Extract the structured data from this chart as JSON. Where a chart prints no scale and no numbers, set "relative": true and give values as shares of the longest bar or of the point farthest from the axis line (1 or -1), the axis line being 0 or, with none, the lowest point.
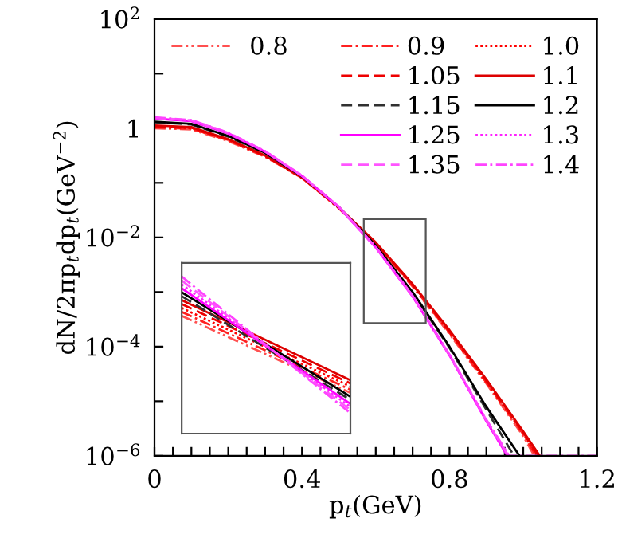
{
  "chart_data": [
    {
      "type": "line",
      "xlabel": "p$_{t}$(GeV)",
      "ylabel": "dN/2πp$_{t}$dp$_{t}$(GeV$^{−2}$)",
      "log": "y",
      "grid": false,
      "legend": "top right",
      "marker": "none",
      "xlim": [
        0,
        1.2
      ],
      "ylim": [
        1e-06,
        100
      ],
      "xticks": [
        0,
        {
          "value": 0.05,
          "label": null
        },
        {
          "value": 0.1,
          "label": null
        },
        {
          "value": 0.15,
          "label": null
        },
        {
          "value": 0.2,
          "label": null
        },
        {
          "value": 0.25,
          "label": null
        },
        {
          "value": 0.3,
          "label": null
        },
        {
          "value": 0.35,
          "label": null
        },
        0.4,
        {
          "value": 0.45,
          "label": null
        },
        {
          "value": 0.5,
          "label": null
        },
        {
          "value": 0.55,
          "label": null
        },
        {
          "value": 0.6,
          "label": null
        },
        {
          "value": 0.65,
          "label": null
        },
        {
          "value": 0.7,
          "label": null
        },
        {
          "value": 0.75,
          "label": null
        },
        0.8,
        {
          "value": 0.85,
          "label": null
        },
        {
          "value": 0.9,
          "label": null
        },
        {
          "value": 0.95,
          "label": null
        },
        {
          "value": 1.0,
          "label": null
        },
        {
          "value": 1.05,
          "label": null
        },
        {
          "value": 1.1,
          "label": null
        },
        {
          "value": 1.15,
          "label": null
        },
        1.2
      ],
      "yticks": [
        {
          "value": 1e-06,
          "label": "10$^{−6}$"
        },
        {
          "value": 1e-05,
          "label": null
        },
        {
          "value": 0.0001,
          "label": "10$^{−4}$"
        },
        {
          "value": 0.001,
          "label": null
        },
        {
          "value": 0.01,
          "label": "10$^{−2}$"
        },
        {
          "value": 0.1,
          "label": null
        },
        1,
        {
          "value": 10,
          "label": null
        },
        {
          "value": 100,
          "label": "10$^{2}$"
        }
      ],
      "series": [
        {
          "name": "0.8",
          "color": "#ff5050",
          "line_style": "dashdotdot",
          "x": [
            0,
            0.1,
            0.2,
            0.3,
            0.4,
            0.5,
            0.6,
            0.7,
            0.8,
            0.9,
            1.0,
            1.03
          ],
          "values": [
            1.0,
            0.95,
            0.58,
            0.3,
            0.122,
            0.034,
            0.0075,
            0.00125,
            0.00017,
            2.1e-05,
            2.3e-06,
            1e-06
          ]
        },
        {
          "name": "0.9",
          "color": "#ff2020",
          "line_style": "dashdot",
          "x": [
            0,
            0.1,
            0.2,
            0.3,
            0.4,
            0.5,
            0.6,
            0.7,
            0.8,
            0.9,
            1.0,
            1.035
          ],
          "values": [
            1.03,
            0.98,
            0.6,
            0.305,
            0.123,
            0.0345,
            0.0077,
            0.0013,
            0.00018,
            2.2e-05,
            2.5e-06,
            1e-06
          ]
        },
        {
          "name": "1.0",
          "color": "#ff0000",
          "line_style": "dotted",
          "x": [
            0,
            0.1,
            0.2,
            0.3,
            0.4,
            0.5,
            0.6,
            0.7,
            0.8,
            0.9,
            1.0,
            1.037
          ],
          "values": [
            1.06,
            1.0,
            0.61,
            0.31,
            0.124,
            0.035,
            0.0078,
            0.00133,
            0.000185,
            2.3e-05,
            2.6e-06,
            1e-06
          ]
        },
        {
          "name": "1.05",
          "color": "#ee0000",
          "line_style": "dashed",
          "x": [
            0,
            0.1,
            0.2,
            0.3,
            0.4,
            0.5,
            0.6,
            0.7,
            0.8,
            0.9,
            1.0,
            1.04
          ],
          "values": [
            1.09,
            1.02,
            0.62,
            0.313,
            0.125,
            0.0352,
            0.0079,
            0.00137,
            0.00019,
            2.4e-05,
            2.7e-06,
            1e-06
          ]
        },
        {
          "name": "1.1",
          "color": "#dd0000",
          "line_style": "solid",
          "x": [
            0,
            0.1,
            0.2,
            0.3,
            0.4,
            0.5,
            0.6,
            0.7,
            0.8,
            0.9,
            1.0,
            1.045
          ],
          "values": [
            1.12,
            1.05,
            0.63,
            0.316,
            0.126,
            0.0355,
            0.0081,
            0.0014,
            0.0002,
            2.5e-05,
            2.8e-06,
            1e-06
          ]
        },
        {
          "name": "1.15",
          "color": "#303030",
          "line_style": "dashed",
          "x": [
            0,
            0.1,
            0.2,
            0.3,
            0.4,
            0.5,
            0.6,
            0.7,
            0.8,
            0.9,
            0.975
          ],
          "values": [
            1.28,
            1.17,
            0.7,
            0.35,
            0.13,
            0.0355,
            0.007,
            0.00096,
            9.5e-05,
            7e-06,
            1e-06
          ]
        },
        {
          "name": "1.2",
          "color": "#000000",
          "line_style": "solid",
          "x": [
            0,
            0.1,
            0.2,
            0.3,
            0.4,
            0.5,
            0.6,
            0.7,
            0.8,
            0.9,
            0.99
          ],
          "values": [
            1.32,
            1.2,
            0.72,
            0.355,
            0.132,
            0.036,
            0.0071,
            0.001,
            0.0001,
            7.9e-06,
            1e-06
          ]
        },
        {
          "name": "1.25",
          "color": "#ff00ff",
          "line_style": "solid",
          "x": [
            0,
            0.1,
            0.2,
            0.3,
            0.4,
            0.5,
            0.6,
            0.7,
            0.8,
            0.9,
            0.957
          ],
          "values": [
            1.5,
            1.35,
            0.8,
            0.37,
            0.133,
            0.0357,
            0.0065,
            0.00083,
            6.9e-05,
            4.3e-06,
            1e-06
          ]
        },
        {
          "name": "1.3",
          "color": "#ff20ff",
          "line_style": "dotted",
          "x": [
            0,
            0.1,
            0.2,
            0.3,
            0.4,
            0.5,
            0.6,
            0.7,
            0.8,
            0.9,
            0.958
          ],
          "values": [
            1.53,
            1.37,
            0.81,
            0.375,
            0.134,
            0.036,
            0.0066,
            0.00084,
            7e-05,
            4.4e-06,
            1e-06
          ]
        },
        {
          "name": "1.35",
          "color": "#ff55ff",
          "line_style": "dashed",
          "x": [
            0,
            0.1,
            0.2,
            0.3,
            0.4,
            0.5,
            0.6,
            0.7,
            0.8,
            0.9,
            0.96
          ],
          "values": [
            1.55,
            1.39,
            0.82,
            0.378,
            0.135,
            0.0362,
            0.0066,
            0.00085,
            7.1e-05,
            4.5e-06,
            1e-06
          ]
        },
        {
          "name": "1.4",
          "color": "#ff44ff",
          "line_style": "dashdot",
          "x": [
            0,
            0.1,
            0.2,
            0.3,
            0.4,
            0.5,
            0.6,
            0.7,
            0.8,
            0.9,
            0.962,
            1.0,
            1.1,
            1.2
          ],
          "values": [
            1.58,
            1.41,
            0.83,
            0.38,
            0.136,
            0.0365,
            0.0067,
            0.00086,
            7.2e-05,
            4.6e-06,
            1e-06,
            1e-06,
            1e-06,
            1e-06
          ]
        }
      ]
    },
    {
      "type": "line",
      "relative": true,
      "marker": "none",
      "categories": [
        null,
        null
      ],
      "series": [
        {
          "color": "#ff5050",
          "line_style": "dashdotdot",
          "values": [
            0.75,
            0.26
          ]
        },
        {
          "color": "#ff2020",
          "line_style": "dashdot",
          "values": [
            0.775,
            0.28
          ]
        },
        {
          "color": "#ff0000",
          "line_style": "dotted",
          "values": [
            0.8,
            0.3
          ]
        },
        {
          "color": "#ee0000",
          "line_style": "dashed",
          "values": [
            0.825,
            0.32
          ]
        },
        {
          "color": "#dd0000",
          "line_style": "solid",
          "values": [
            0.85,
            0.34
          ]
        },
        {
          "color": "#303030",
          "line_style": "dashed",
          "values": [
            0.875,
            0.215
          ]
        },
        {
          "color": "#000000",
          "line_style": "solid",
          "values": [
            0.9,
            0.235
          ]
        },
        {
          "color": "#ff00ff",
          "line_style": "solid",
          "values": [
            0.925,
            0.19
          ]
        },
        {
          "color": "#ff20ff",
          "line_style": "dotted",
          "values": [
            0.95,
            0.17
          ]
        },
        {
          "color": "#ff55ff",
          "line_style": "dashed",
          "values": [
            0.975,
            0.15
          ]
        },
        {
          "color": "#ff44ff",
          "line_style": "dashdot",
          "values": [
            1,
            0.13
          ]
        }
      ]
    }
  ]
}
